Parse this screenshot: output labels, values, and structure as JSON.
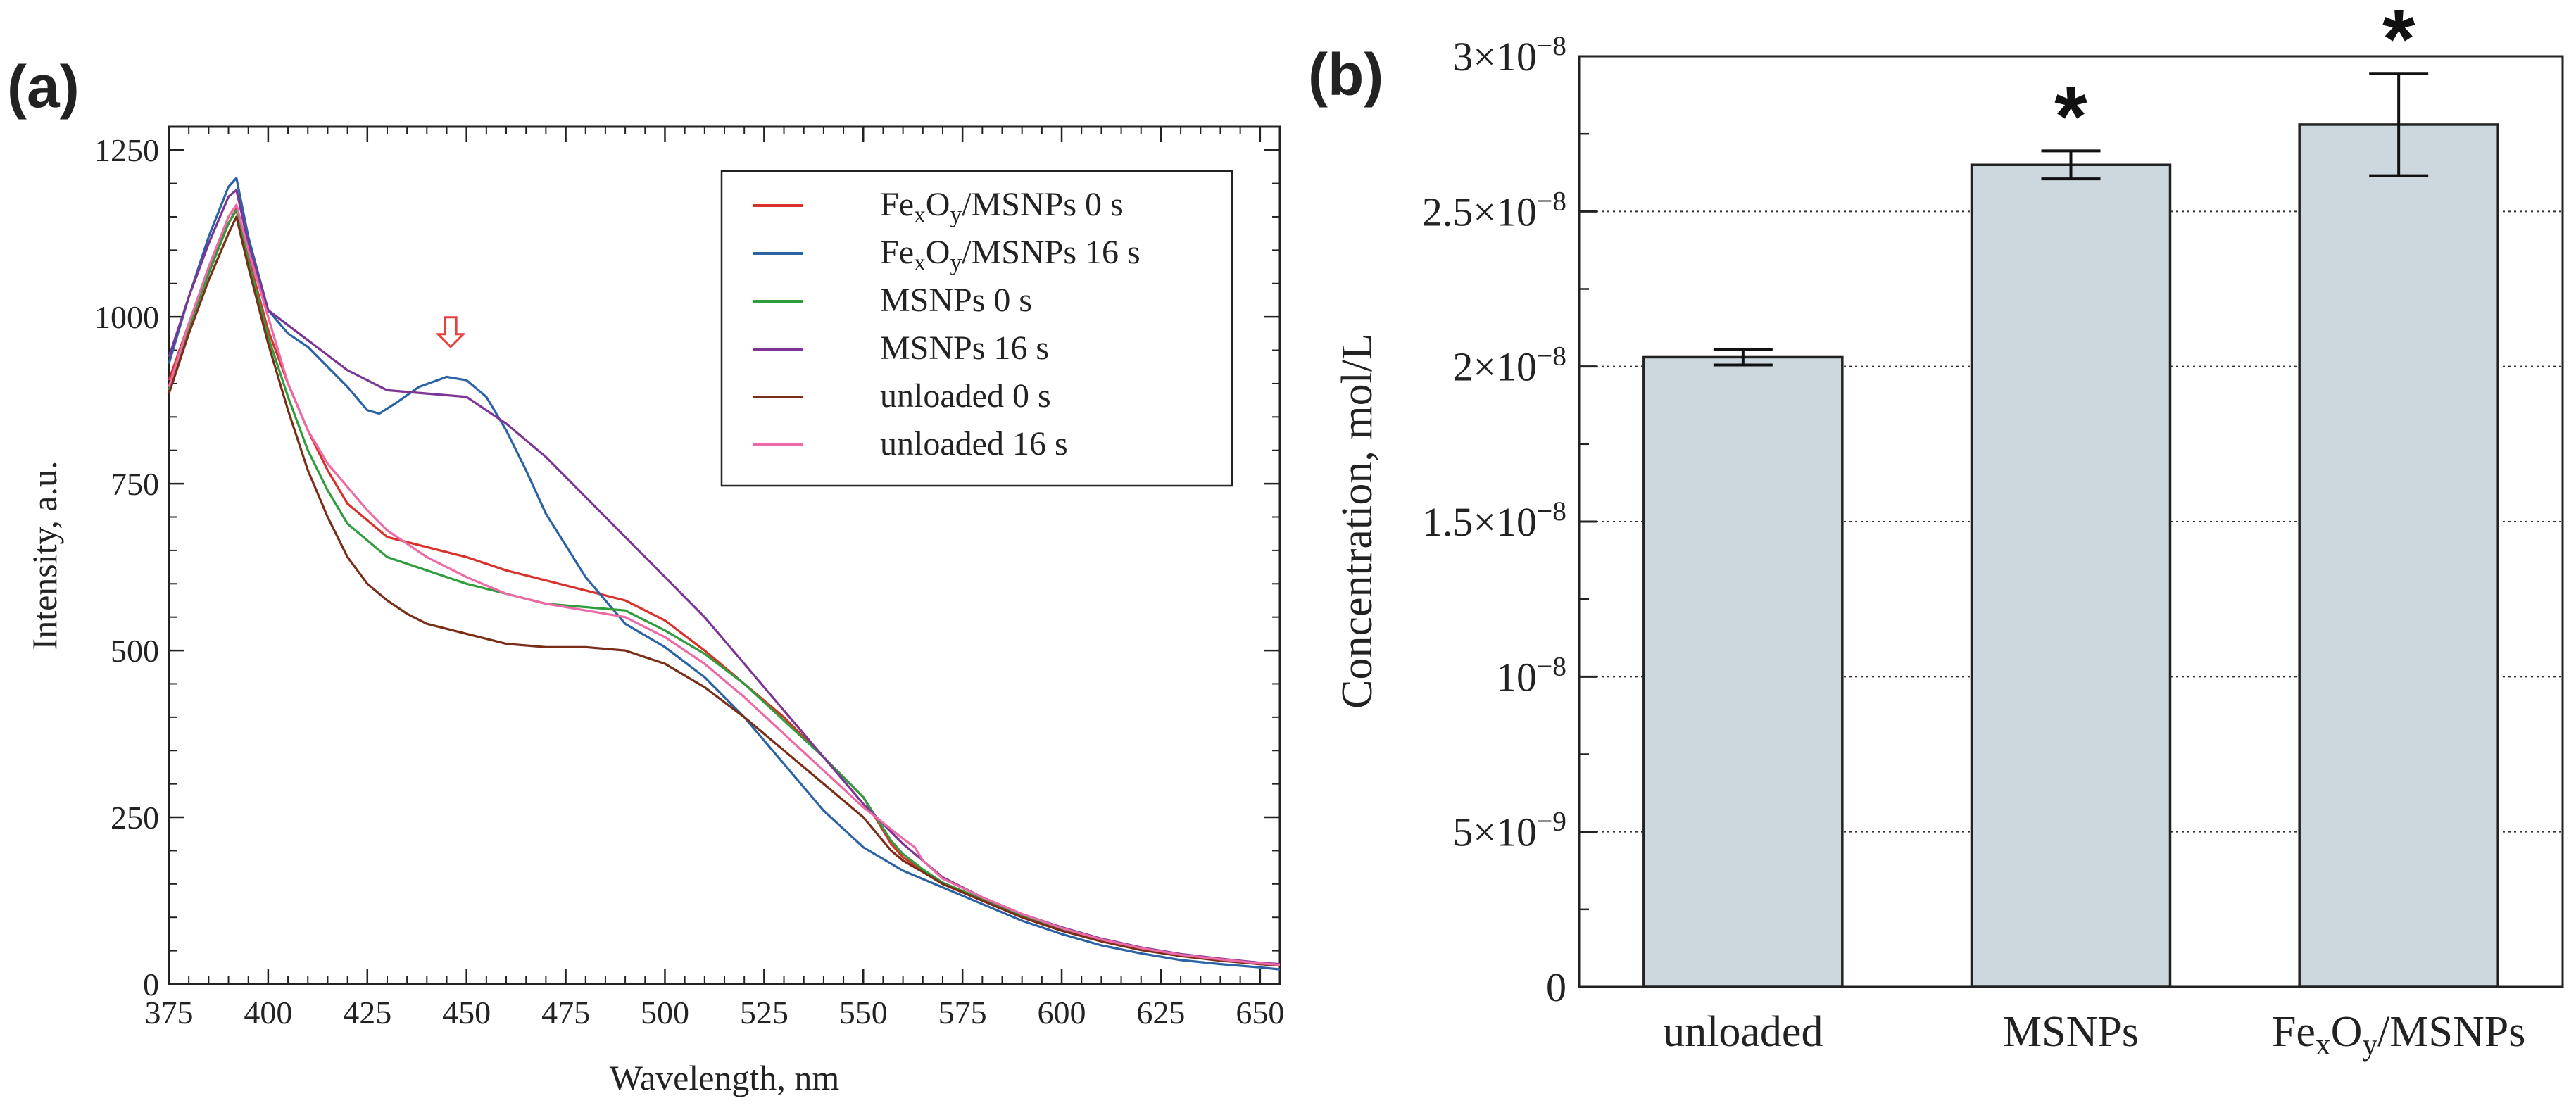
{
  "chart_data": [
    {
      "panel": "(a)",
      "type": "line",
      "xlabel": "Wavelength, nm",
      "ylabel": "Intensity, a.u.",
      "xlim": [
        375,
        655
      ],
      "ylim": [
        0,
        1285
      ],
      "xticks": [
        375,
        400,
        425,
        450,
        475,
        500,
        525,
        550,
        575,
        600,
        625,
        650
      ],
      "yticks": [
        0,
        250,
        500,
        750,
        1000,
        1250
      ],
      "grid": false,
      "legend_position": "top-right",
      "annotation": {
        "type": "down-arrow",
        "x": 446,
        "y": 955,
        "color": "#e8413c"
      },
      "series": [
        {
          "legend_base": "Fe",
          "legend_sub1": "x",
          "legend_mid": "O",
          "legend_sub2": "y",
          "legend_rest": "/MSNPs 0 s",
          "color": "#d9302c",
          "x": [
            375,
            380,
            385,
            390,
            392,
            395,
            400,
            405,
            410,
            415,
            420,
            425,
            430,
            440,
            450,
            460,
            470,
            480,
            490,
            500,
            510,
            520,
            530,
            540,
            550,
            557,
            560,
            565,
            570,
            580,
            590,
            600,
            610,
            620,
            630,
            640,
            650,
            655
          ],
          "y": [
            905,
            990,
            1070,
            1140,
            1162,
            1090,
            980,
            900,
            830,
            770,
            720,
            695,
            670,
            655,
            640,
            620,
            605,
            590,
            575,
            545,
            500,
            450,
            400,
            340,
            280,
            210,
            190,
            170,
            150,
            125,
            100,
            80,
            65,
            52,
            43,
            36,
            30,
            28
          ]
        },
        {
          "legend_base": "Fe",
          "legend_sub1": "x",
          "legend_mid": "O",
          "legend_sub2": "y",
          "legend_rest": "/MSNPs 16 s",
          "color": "#2b63a5",
          "x": [
            375,
            380,
            385,
            390,
            392,
            395,
            400,
            405,
            410,
            415,
            420,
            425,
            428,
            432,
            438,
            445,
            450,
            455,
            460,
            465,
            470,
            480,
            490,
            500,
            510,
            520,
            530,
            540,
            550,
            560,
            570,
            580,
            590,
            600,
            610,
            620,
            630,
            640,
            650,
            655
          ],
          "y": [
            930,
            1030,
            1120,
            1195,
            1208,
            1120,
            1010,
            975,
            955,
            925,
            895,
            860,
            855,
            870,
            895,
            910,
            905,
            880,
            830,
            770,
            705,
            610,
            540,
            505,
            460,
            400,
            330,
            260,
            205,
            170,
            145,
            120,
            95,
            75,
            58,
            46,
            36,
            30,
            25,
            22
          ]
        },
        {
          "legend_base": "MSNPs 0 s",
          "color": "#2f9c3e",
          "x": [
            375,
            380,
            385,
            390,
            392,
            395,
            400,
            405,
            410,
            415,
            420,
            425,
            430,
            440,
            450,
            460,
            470,
            480,
            490,
            500,
            510,
            520,
            530,
            540,
            550,
            557,
            560,
            565,
            570,
            580,
            590,
            600,
            610,
            620,
            630,
            640,
            650,
            655
          ],
          "y": [
            890,
            985,
            1065,
            1140,
            1160,
            1085,
            970,
            880,
            800,
            740,
            690,
            665,
            640,
            620,
            600,
            585,
            570,
            565,
            560,
            530,
            495,
            450,
            395,
            340,
            280,
            215,
            195,
            172,
            152,
            127,
            102,
            82,
            66,
            53,
            43,
            36,
            30,
            28
          ]
        },
        {
          "legend_base": "MSNPs 16 s",
          "color": "#7d3595",
          "x": [
            375,
            380,
            385,
            390,
            392,
            395,
            400,
            410,
            420,
            430,
            440,
            450,
            460,
            470,
            480,
            490,
            500,
            510,
            520,
            530,
            540,
            550,
            560,
            570,
            580,
            590,
            600,
            610,
            620,
            630,
            640,
            650,
            655
          ],
          "y": [
            940,
            1030,
            1110,
            1180,
            1190,
            1110,
            1010,
            965,
            920,
            890,
            885,
            880,
            840,
            790,
            730,
            670,
            610,
            550,
            480,
            410,
            340,
            270,
            210,
            160,
            130,
            105,
            85,
            68,
            55,
            45,
            38,
            32,
            30
          ]
        },
        {
          "legend_base": "unloaded 0 s",
          "color": "#7a2e18",
          "x": [
            375,
            380,
            385,
            390,
            392,
            395,
            400,
            405,
            410,
            415,
            420,
            425,
            430,
            435,
            440,
            450,
            460,
            470,
            480,
            490,
            500,
            510,
            520,
            530,
            540,
            550,
            557,
            560,
            565,
            570,
            580,
            590,
            600,
            610,
            620,
            630,
            640,
            650,
            655
          ],
          "y": [
            885,
            975,
            1055,
            1125,
            1150,
            1075,
            960,
            860,
            770,
            700,
            640,
            600,
            575,
            555,
            540,
            525,
            510,
            505,
            505,
            500,
            480,
            445,
            400,
            350,
            300,
            250,
            200,
            185,
            168,
            150,
            125,
            100,
            80,
            64,
            51,
            42,
            35,
            30,
            28
          ]
        },
        {
          "legend_base": "unloaded 16 s",
          "color": "#ec6aa6",
          "x": [
            375,
            380,
            385,
            390,
            392,
            395,
            400,
            405,
            410,
            415,
            420,
            425,
            430,
            440,
            450,
            460,
            470,
            480,
            490,
            500,
            510,
            520,
            530,
            540,
            550,
            560,
            563,
            565,
            570,
            580,
            590,
            600,
            610,
            620,
            630,
            640,
            650,
            655
          ],
          "y": [
            895,
            990,
            1075,
            1150,
            1168,
            1100,
            1000,
            900,
            830,
            780,
            745,
            710,
            680,
            640,
            610,
            585,
            570,
            560,
            550,
            520,
            480,
            430,
            375,
            320,
            265,
            218,
            205,
            185,
            158,
            130,
            105,
            84,
            67,
            54,
            44,
            37,
            31,
            29
          ]
        }
      ]
    },
    {
      "panel": "(b)",
      "type": "bar",
      "ylabel": "Concentration, mol/L",
      "ylim": [
        0,
        3e-08
      ],
      "ytick_values": [
        0,
        5e-09,
        1e-08,
        1.5e-08,
        2e-08,
        2.5e-08,
        3e-08
      ],
      "ytick_labels": [
        {
          "main": "0",
          "exp": ""
        },
        {
          "main": "5×10",
          "exp": "−9"
        },
        {
          "main": "10",
          "exp": "−8"
        },
        {
          "main": "1.5×10",
          "exp": "−8"
        },
        {
          "main": "2×10",
          "exp": "−8"
        },
        {
          "main": "2.5×10",
          "exp": "−8"
        },
        {
          "main": "3×10",
          "exp": "−8"
        }
      ],
      "grid": "horizontal dotted",
      "bar_color": "#ccd8de",
      "categories": [
        {
          "base": "unloaded"
        },
        {
          "base": "MSNPs"
        },
        {
          "base": "Fe",
          "sub1": "x",
          "mid": "O",
          "sub2": "y",
          "rest": "/MSNPs"
        }
      ],
      "values": [
        2.03e-08,
        2.65e-08,
        2.78e-08
      ],
      "errors": [
        2.5e-10,
        4.5e-10,
        1.65e-09
      ],
      "significance": [
        "",
        "*",
        "*"
      ]
    }
  ]
}
